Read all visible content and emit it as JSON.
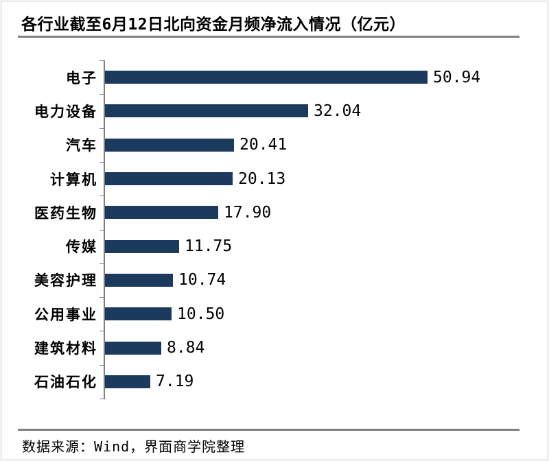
{
  "page": {
    "background": "#ffffff",
    "frame_border_color": "#c6c6c6",
    "divider_color": "#808080"
  },
  "chart_data": {
    "type": "bar",
    "orientation": "horizontal",
    "title": "各行业截至6月12日北向资金月频净流入情况（亿元）",
    "unit": "亿元",
    "categories": [
      "电子",
      "电力设备",
      "汽车",
      "计算机",
      "医药生物",
      "传媒",
      "美容护理",
      "公用事业",
      "建筑材料",
      "石油石化"
    ],
    "values": [
      50.94,
      32.04,
      20.41,
      20.13,
      17.9,
      11.75,
      10.74,
      10.5,
      8.84,
      7.19
    ],
    "value_labels": [
      "50.94",
      "32.04",
      "20.41",
      "20.13",
      "17.90",
      "11.75",
      "10.74",
      "10.50",
      "8.84",
      "7.19"
    ],
    "bar_color": "#1C3A5E",
    "axis_color": "#7f7f7f",
    "grid": false,
    "legend": false,
    "value_labels_position": "end-of-bar",
    "category_axis_side": "left"
  },
  "footer": {
    "source_text": "数据来源：Wind，界面商学院整理"
  }
}
